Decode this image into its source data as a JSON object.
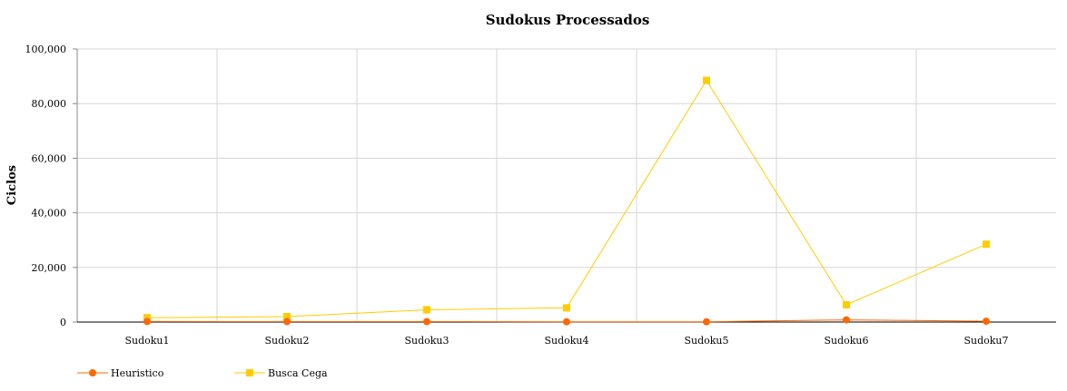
{
  "chart_data": {
    "type": "line",
    "title": "Sudokus Processados",
    "xlabel": "",
    "ylabel": "Ciclos",
    "categories": [
      "Sudoku1",
      "Sudoku2",
      "Sudoku3",
      "Sudoku4",
      "Sudoku5",
      "Sudoku6",
      "Sudoku7"
    ],
    "ylim": [
      0,
      100000
    ],
    "yticks": [
      0,
      20000,
      40000,
      60000,
      80000,
      100000
    ],
    "ytick_labels": [
      "0",
      "20,000",
      "40,000",
      "60,000",
      "80,000",
      "100,000"
    ],
    "grid": true,
    "legend_position": "bottom-left",
    "series": [
      {
        "name": "Heuristico",
        "values": [
          200,
          150,
          150,
          100,
          100,
          800,
          300
        ],
        "color": "#ff6600",
        "marker": "circle"
      },
      {
        "name": "Busca Cega",
        "values": [
          1600,
          2000,
          4500,
          5200,
          88500,
          6300,
          28500
        ],
        "color": "#ffcc00",
        "marker": "square"
      }
    ]
  }
}
